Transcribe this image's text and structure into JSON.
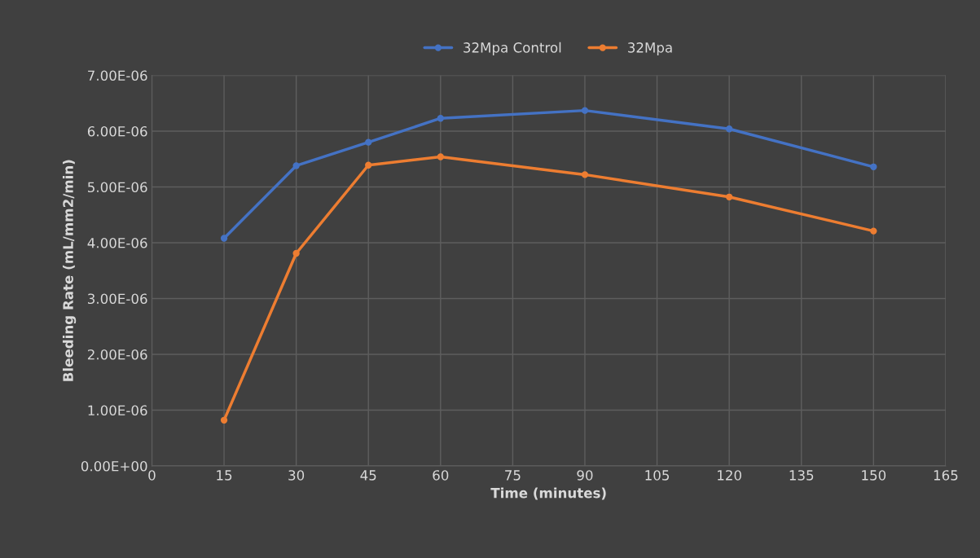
{
  "chart_data": {
    "type": "line",
    "xlabel": "Time (minutes)",
    "ylabel": "Bleeding Rate (mL/mm2/min)",
    "x": [
      15,
      30,
      45,
      60,
      90,
      120,
      150
    ],
    "series": [
      {
        "name": "32Mpa Control",
        "color": "#4472c4",
        "values": [
          4.08e-06,
          5.38e-06,
          5.8e-06,
          6.23e-06,
          6.37e-06,
          6.04e-06,
          5.36e-06
        ]
      },
      {
        "name": "32Mpa",
        "color": "#ed7d31",
        "values": [
          8.2e-07,
          3.81e-06,
          5.39e-06,
          5.54e-06,
          5.22e-06,
          4.82e-06,
          4.21e-06
        ]
      }
    ],
    "xlim": [
      0,
      165
    ],
    "xticks": [
      0,
      15,
      30,
      45,
      60,
      75,
      90,
      105,
      120,
      135,
      150,
      165
    ],
    "ylim": [
      0,
      7e-06
    ],
    "yticks": [
      {
        "value": 0,
        "label": "0.00E+00"
      },
      {
        "value": 1e-06,
        "label": "1.00E-06"
      },
      {
        "value": 2e-06,
        "label": "2.00E-06"
      },
      {
        "value": 3e-06,
        "label": "3.00E-06"
      },
      {
        "value": 4e-06,
        "label": "4.00E-06"
      },
      {
        "value": 5e-06,
        "label": "5.00E-06"
      },
      {
        "value": 6e-06,
        "label": "6.00E-06"
      },
      {
        "value": 7e-06,
        "label": "7.00E-06"
      }
    ],
    "grid": true,
    "legend": "top",
    "marker": "circle",
    "line_style": "solid"
  }
}
